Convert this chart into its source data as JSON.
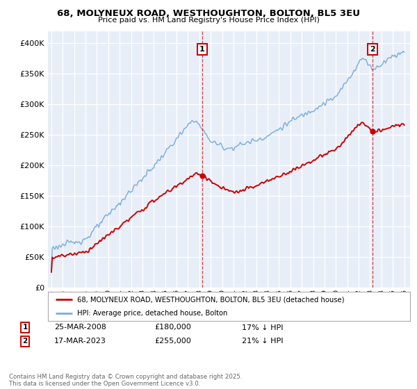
{
  "title": "68, MOLYNEUX ROAD, WESTHOUGHTON, BOLTON, BL5 3EU",
  "subtitle": "Price paid vs. HM Land Registry's House Price Index (HPI)",
  "legend_line1": "68, MOLYNEUX ROAD, WESTHOUGHTON, BOLTON, BL5 3EU (detached house)",
  "legend_line2": "HPI: Average price, detached house, Bolton",
  "sale1_date": "25-MAR-2008",
  "sale1_price": 180000,
  "sale1_label": "17% ↓ HPI",
  "sale1_year": 2008.23,
  "sale2_date": "17-MAR-2023",
  "sale2_price": 255000,
  "sale2_label": "21% ↓ HPI",
  "sale2_year": 2023.21,
  "footer": "Contains HM Land Registry data © Crown copyright and database right 2025.\nThis data is licensed under the Open Government Licence v3.0.",
  "price_color": "#cc0000",
  "hpi_color": "#7aaddb",
  "background_color": "#e8eef8",
  "ylim": [
    0,
    420000
  ],
  "xlim_start": 1994.7,
  "xlim_end": 2026.5
}
